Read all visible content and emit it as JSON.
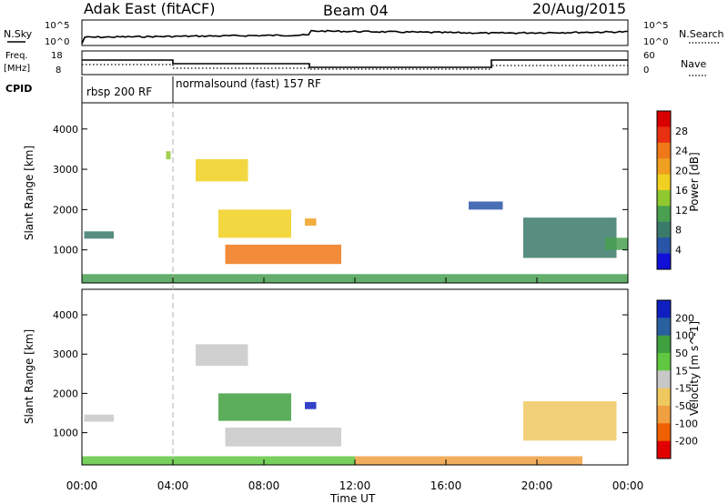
{
  "header": {
    "title": "Adak East (fitACF)",
    "beam": "Beam 04",
    "date": "20/Aug/2015"
  },
  "noise_panel": {
    "left_label": "N.Sky",
    "right_label": "N.Search",
    "left_ticks": [
      "10^5",
      "10^0"
    ],
    "right_ticks": [
      "10^5",
      "10^0"
    ]
  },
  "freq_panel": {
    "left_label_1": "Freq.",
    "left_label_2": "[MHz]",
    "left_ticks": [
      "18",
      "8"
    ],
    "right_label": "Nave",
    "right_ticks": [
      "60",
      "0"
    ]
  },
  "cpid_panel": {
    "label": "CPID",
    "segments": [
      "rbsp 200 RF",
      "normalsound (fast) 157 RF"
    ]
  },
  "colors": {
    "power_scale": [
      "#1010d8",
      "#2855a8",
      "#3a7a6a",
      "#48a050",
      "#90c830",
      "#f0d020",
      "#f0a020",
      "#f07818",
      "#e83010",
      "#d80000"
    ],
    "velocity_scale": [
      "#e00000",
      "#f06000",
      "#f0a040",
      "#f0c860",
      "#c8c8c8",
      "#60c840",
      "#40a040",
      "#2860a0",
      "#1020c0"
    ]
  },
  "chart_data": [
    {
      "type": "heatmap",
      "title": "Power",
      "xlabel": "Time UT",
      "ylabel": "Slant Range [km]",
      "x_ticks": [
        "00:00",
        "04:00",
        "08:00",
        "12:00",
        "16:00",
        "20:00",
        "00:00"
      ],
      "y_ticks": [
        "1000",
        "2000",
        "3000",
        "4000"
      ],
      "ylim": [
        180,
        4650
      ],
      "colorbar_label": "Power [dB]",
      "colorbar_ticks": [
        "4",
        "8",
        "12",
        "16",
        "20",
        "24",
        "28"
      ],
      "regions": [
        {
          "t0": 0.1,
          "t1": 1.4,
          "r0": 1280,
          "r1": 1460,
          "level": 2
        },
        {
          "t0": 3.7,
          "t1": 3.9,
          "r0": 3250,
          "r1": 3450,
          "level": 4
        },
        {
          "t0": 5.0,
          "t1": 7.3,
          "r0": 2700,
          "r1": 3250,
          "level": 5
        },
        {
          "t0": 6.0,
          "t1": 9.2,
          "r0": 1300,
          "r1": 2000,
          "level": 5
        },
        {
          "t0": 9.8,
          "t1": 10.3,
          "r0": 1600,
          "r1": 1780,
          "level": 6
        },
        {
          "t0": 6.3,
          "t1": 11.4,
          "r0": 650,
          "r1": 1130,
          "level": 7
        },
        {
          "t0": 19.4,
          "t1": 23.5,
          "r0": 800,
          "r1": 1800,
          "level": 2
        },
        {
          "t0": 23.0,
          "t1": 24.0,
          "r0": 1000,
          "r1": 1300,
          "level": 3
        },
        {
          "t0": 17.0,
          "t1": 18.5,
          "r0": 2000,
          "r1": 2200,
          "level": 1
        },
        {
          "t0": 0.0,
          "t1": 24.0,
          "r0": 180,
          "r1": 400,
          "level": 3
        }
      ]
    },
    {
      "type": "heatmap",
      "title": "Velocity",
      "xlabel": "Time UT",
      "ylabel": "Slant Range [km]",
      "x_ticks": [
        "00:00",
        "04:00",
        "08:00",
        "12:00",
        "16:00",
        "20:00",
        "00:00"
      ],
      "y_ticks": [
        "1000",
        "2000",
        "3000",
        "4000"
      ],
      "ylim": [
        180,
        4650
      ],
      "colorbar_label": "Velocity [m s^-1]",
      "colorbar_ticks": [
        "200",
        "100",
        "50",
        "15",
        "-15",
        "-50",
        "-100",
        "-200"
      ],
      "regions": [
        {
          "t0": 0.1,
          "t1": 1.4,
          "r0": 1280,
          "r1": 1460,
          "level": 4
        },
        {
          "t0": 5.0,
          "t1": 7.3,
          "r0": 2700,
          "r1": 3250,
          "level": 4
        },
        {
          "t0": 6.0,
          "t1": 9.2,
          "r0": 1300,
          "r1": 2000,
          "level": 6
        },
        {
          "t0": 9.8,
          "t1": 10.3,
          "r0": 1600,
          "r1": 1780,
          "level": 8
        },
        {
          "t0": 6.3,
          "t1": 11.4,
          "r0": 650,
          "r1": 1130,
          "level": 4
        },
        {
          "t0": 19.4,
          "t1": 23.5,
          "r0": 800,
          "r1": 1800,
          "level": 3
        },
        {
          "t0": 12.0,
          "t1": 22.0,
          "r0": 180,
          "r1": 400,
          "level": 2
        },
        {
          "t0": 0.0,
          "t1": 12.0,
          "r0": 180,
          "r1": 400,
          "level": 5
        }
      ]
    }
  ]
}
